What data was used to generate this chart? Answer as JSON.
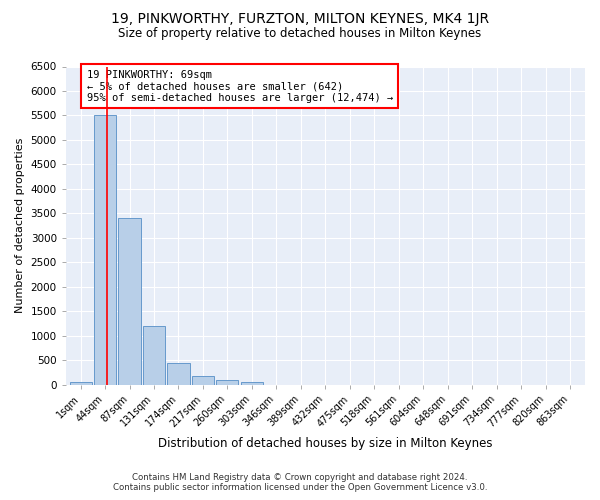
{
  "title": "19, PINKWORTHY, FURZTON, MILTON KEYNES, MK4 1JR",
  "subtitle": "Size of property relative to detached houses in Milton Keynes",
  "xlabel": "Distribution of detached houses by size in Milton Keynes",
  "ylabel": "Number of detached properties",
  "bar_color": "#b8cfe8",
  "bar_edge_color": "#6699cc",
  "categories": [
    "1sqm",
    "44sqm",
    "87sqm",
    "131sqm",
    "174sqm",
    "217sqm",
    "260sqm",
    "303sqm",
    "346sqm",
    "389sqm",
    "432sqm",
    "475sqm",
    "518sqm",
    "561sqm",
    "604sqm",
    "648sqm",
    "691sqm",
    "734sqm",
    "777sqm",
    "820sqm",
    "863sqm"
  ],
  "values": [
    50,
    5500,
    3400,
    1200,
    450,
    175,
    100,
    50,
    0,
    0,
    0,
    0,
    0,
    0,
    0,
    0,
    0,
    0,
    0,
    0,
    0
  ],
  "annotation_text": "19 PINKWORTHY: 69sqm\n← 5% of detached houses are smaller (642)\n95% of semi-detached houses are larger (12,474) →",
  "annotation_box_color": "white",
  "annotation_box_edge_color": "red",
  "property_line_color": "red",
  "property_line_xindex": 1,
  "ylim": [
    0,
    6500
  ],
  "yticks": [
    0,
    500,
    1000,
    1500,
    2000,
    2500,
    3000,
    3500,
    4000,
    4500,
    5000,
    5500,
    6000,
    6500
  ],
  "footer_line1": "Contains HM Land Registry data © Crown copyright and database right 2024.",
  "footer_line2": "Contains public sector information licensed under the Open Government Licence v3.0.",
  "bg_color": "#e8eef8",
  "fig_bg_color": "#ffffff"
}
